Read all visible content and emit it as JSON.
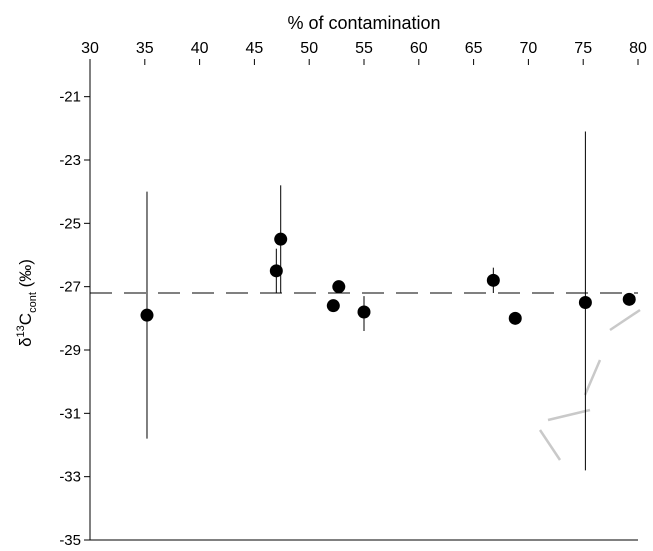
{
  "chart_data": {
    "type": "scatter",
    "title": "",
    "xlabel": "% of contamination",
    "ylabel": {
      "prefix": "δ",
      "superscript": "13",
      "main": "C",
      "subscript": "cont",
      "unit": " (‰)"
    },
    "xlim": [
      30,
      80
    ],
    "ylim": [
      -35,
      -20
    ],
    "x_axis_position": "top",
    "x_ticks": [
      "30",
      "35",
      "40",
      "45",
      "50",
      "55",
      "60",
      "65",
      "70",
      "75",
      "80"
    ],
    "x_tick_values": [
      30,
      35,
      40,
      45,
      50,
      55,
      60,
      65,
      70,
      75,
      80
    ],
    "y_ticks": [
      "-21",
      "-23",
      "-25",
      "-27",
      "-29",
      "-31",
      "-33",
      "-35"
    ],
    "y_tick_values": [
      -21,
      -23,
      -25,
      -27,
      -29,
      -31,
      -33,
      -35
    ],
    "grid": false,
    "reference_line": {
      "y": -27.2,
      "style": "dashed"
    },
    "points": [
      {
        "x": 35.2,
        "y": -27.9,
        "err_low": -31.8,
        "err_high": -24.0
      },
      {
        "x": 47.0,
        "y": -26.5,
        "err_low": -27.2,
        "err_high": -25.8
      },
      {
        "x": 47.4,
        "y": -25.5,
        "err_low": -27.2,
        "err_high": -23.8
      },
      {
        "x": 52.2,
        "y": -27.6,
        "err_low": -27.6,
        "err_high": -27.6
      },
      {
        "x": 52.7,
        "y": -27.0,
        "err_low": -27.0,
        "err_high": -27.0
      },
      {
        "x": 55.0,
        "y": -27.8,
        "err_low": -28.4,
        "err_high": -27.3
      },
      {
        "x": 66.8,
        "y": -26.8,
        "err_low": -27.2,
        "err_high": -26.4
      },
      {
        "x": 68.8,
        "y": -28.0,
        "err_low": -28.0,
        "err_high": -28.0
      },
      {
        "x": 75.2,
        "y": -27.5,
        "err_low": -32.8,
        "err_high": -22.1
      },
      {
        "x": 79.2,
        "y": -27.4,
        "err_low": -27.4,
        "err_high": -27.4
      }
    ]
  }
}
